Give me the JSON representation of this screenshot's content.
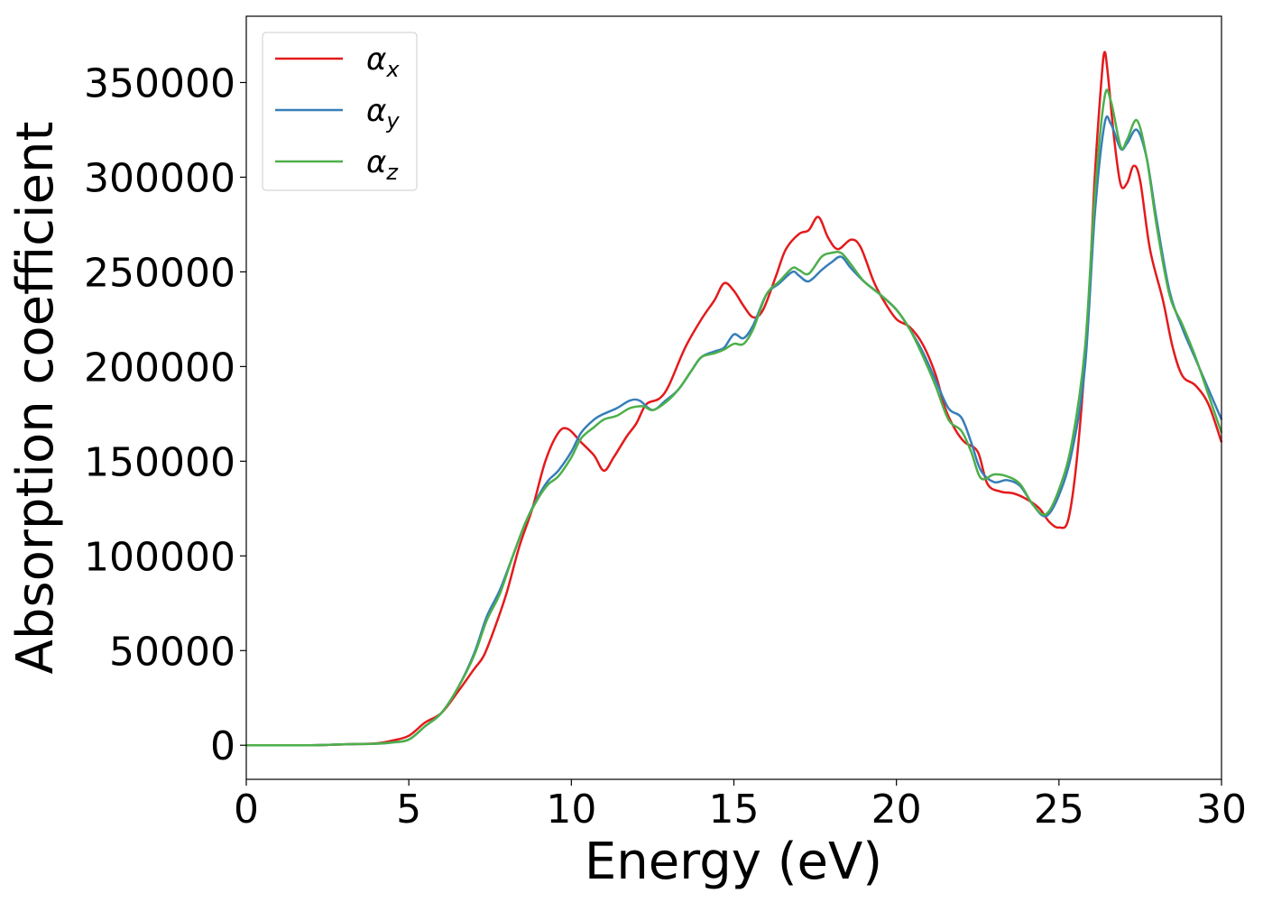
{
  "chart_data": {
    "type": "line",
    "xlabel": "Energy (eV)",
    "ylabel": "Absorption coefficient",
    "xlim": [
      0,
      30
    ],
    "ylim": [
      -18000,
      385000
    ],
    "grid": false,
    "legend_position": "top-left",
    "x_ticks": [
      0,
      5,
      10,
      15,
      20,
      25,
      30
    ],
    "x_tick_labels": [
      "0",
      "5",
      "10",
      "15",
      "20",
      "25",
      "30"
    ],
    "y_ticks": [
      0,
      50000,
      100000,
      150000,
      200000,
      250000,
      300000,
      350000
    ],
    "y_tick_labels": [
      "0",
      "50000",
      "100000",
      "150000",
      "200000",
      "250000",
      "300000",
      "350000"
    ],
    "series": [
      {
        "name": "α",
        "subscript": "x",
        "color": "#e41a1c",
        "points": [
          [
            0,
            0
          ],
          [
            2,
            0
          ],
          [
            3,
            500
          ],
          [
            4,
            1000
          ],
          [
            4.5,
            2500
          ],
          [
            5,
            5000
          ],
          [
            5.5,
            12000
          ],
          [
            6,
            17000
          ],
          [
            6.5,
            28000
          ],
          [
            7,
            40000
          ],
          [
            7.3,
            47000
          ],
          [
            7.6,
            60000
          ],
          [
            8,
            80000
          ],
          [
            8.4,
            105000
          ],
          [
            8.8,
            125000
          ],
          [
            9.2,
            150000
          ],
          [
            9.6,
            165000
          ],
          [
            9.9,
            167000
          ],
          [
            10.3,
            160000
          ],
          [
            10.7,
            153000
          ],
          [
            11,
            145000
          ],
          [
            11.3,
            152000
          ],
          [
            11.7,
            163000
          ],
          [
            12,
            170000
          ],
          [
            12.3,
            180000
          ],
          [
            12.7,
            183000
          ],
          [
            13,
            190000
          ],
          [
            13.5,
            210000
          ],
          [
            14,
            225000
          ],
          [
            14.4,
            235000
          ],
          [
            14.7,
            244000
          ],
          [
            15,
            240000
          ],
          [
            15.3,
            232000
          ],
          [
            15.6,
            226000
          ],
          [
            15.9,
            230000
          ],
          [
            16.3,
            248000
          ],
          [
            16.6,
            262000
          ],
          [
            17,
            270000
          ],
          [
            17.3,
            272000
          ],
          [
            17.6,
            279000
          ],
          [
            17.9,
            268000
          ],
          [
            18.2,
            262000
          ],
          [
            18.6,
            267000
          ],
          [
            18.9,
            263000
          ],
          [
            19.3,
            245000
          ],
          [
            19.6,
            235000
          ],
          [
            20,
            225000
          ],
          [
            20.4,
            221000
          ],
          [
            20.8,
            212000
          ],
          [
            21.2,
            196000
          ],
          [
            21.5,
            178000
          ],
          [
            21.8,
            167000
          ],
          [
            22.1,
            160000
          ],
          [
            22.5,
            155000
          ],
          [
            22.8,
            138000
          ],
          [
            23.2,
            134000
          ],
          [
            23.6,
            133000
          ],
          [
            24,
            130000
          ],
          [
            24.4,
            125000
          ],
          [
            24.7,
            118000
          ],
          [
            25,
            115000
          ],
          [
            25.3,
            120000
          ],
          [
            25.6,
            160000
          ],
          [
            25.9,
            230000
          ],
          [
            26.1,
            300000
          ],
          [
            26.3,
            350000
          ],
          [
            26.4,
            366000
          ],
          [
            26.5,
            355000
          ],
          [
            26.7,
            320000
          ],
          [
            26.9,
            296000
          ],
          [
            27.1,
            297000
          ],
          [
            27.3,
            306000
          ],
          [
            27.5,
            298000
          ],
          [
            27.8,
            262000
          ],
          [
            28.2,
            235000
          ],
          [
            28.5,
            210000
          ],
          [
            28.8,
            195000
          ],
          [
            29.2,
            190000
          ],
          [
            29.6,
            180000
          ],
          [
            30,
            160000
          ]
        ]
      },
      {
        "name": "α",
        "subscript": "y",
        "color": "#377eb8",
        "points": [
          [
            0,
            0
          ],
          [
            2,
            0
          ],
          [
            3,
            500
          ],
          [
            4,
            800
          ],
          [
            4.5,
            1500
          ],
          [
            5,
            3000
          ],
          [
            5.5,
            10000
          ],
          [
            6,
            17000
          ],
          [
            6.5,
            30000
          ],
          [
            7,
            48000
          ],
          [
            7.4,
            68000
          ],
          [
            7.8,
            82000
          ],
          [
            8.2,
            100000
          ],
          [
            8.6,
            118000
          ],
          [
            9,
            132000
          ],
          [
            9.3,
            140000
          ],
          [
            9.6,
            145000
          ],
          [
            10,
            155000
          ],
          [
            10.3,
            165000
          ],
          [
            10.7,
            172000
          ],
          [
            11,
            175000
          ],
          [
            11.4,
            178000
          ],
          [
            11.8,
            182000
          ],
          [
            12.1,
            182000
          ],
          [
            12.5,
            177000
          ],
          [
            12.9,
            182000
          ],
          [
            13.3,
            188000
          ],
          [
            13.7,
            198000
          ],
          [
            14,
            205000
          ],
          [
            14.4,
            208000
          ],
          [
            14.7,
            210000
          ],
          [
            15,
            217000
          ],
          [
            15.3,
            215000
          ],
          [
            15.6,
            222000
          ],
          [
            16,
            238000
          ],
          [
            16.4,
            244000
          ],
          [
            16.8,
            250000
          ],
          [
            17,
            248000
          ],
          [
            17.3,
            245000
          ],
          [
            17.7,
            251000
          ],
          [
            18,
            255000
          ],
          [
            18.3,
            258000
          ],
          [
            18.6,
            252000
          ],
          [
            19,
            245000
          ],
          [
            19.5,
            238000
          ],
          [
            20,
            230000
          ],
          [
            20.4,
            220000
          ],
          [
            20.8,
            208000
          ],
          [
            21.2,
            193000
          ],
          [
            21.6,
            178000
          ],
          [
            22,
            173000
          ],
          [
            22.3,
            160000
          ],
          [
            22.6,
            145000
          ],
          [
            23,
            139000
          ],
          [
            23.4,
            140000
          ],
          [
            23.8,
            137000
          ],
          [
            24.2,
            127000
          ],
          [
            24.6,
            121000
          ],
          [
            25,
            132000
          ],
          [
            25.4,
            155000
          ],
          [
            25.8,
            200000
          ],
          [
            26.1,
            280000
          ],
          [
            26.4,
            328000
          ],
          [
            26.6,
            328000
          ],
          [
            26.9,
            315000
          ],
          [
            27.1,
            318000
          ],
          [
            27.4,
            325000
          ],
          [
            27.7,
            310000
          ],
          [
            28,
            278000
          ],
          [
            28.4,
            240000
          ],
          [
            28.8,
            220000
          ],
          [
            29.2,
            204000
          ],
          [
            29.6,
            188000
          ],
          [
            30,
            172000
          ]
        ]
      },
      {
        "name": "α",
        "subscript": "z",
        "color": "#4daf4a",
        "points": [
          [
            0,
            0
          ],
          [
            2,
            0
          ],
          [
            3,
            500
          ],
          [
            4,
            800
          ],
          [
            4.5,
            1500
          ],
          [
            5,
            3000
          ],
          [
            5.5,
            10000
          ],
          [
            6,
            17000
          ],
          [
            6.5,
            30000
          ],
          [
            7,
            47000
          ],
          [
            7.4,
            66000
          ],
          [
            7.8,
            80000
          ],
          [
            8.2,
            100000
          ],
          [
            8.6,
            118000
          ],
          [
            9,
            131000
          ],
          [
            9.3,
            138000
          ],
          [
            9.6,
            142000
          ],
          [
            10,
            152000
          ],
          [
            10.3,
            162000
          ],
          [
            10.7,
            168000
          ],
          [
            11,
            172000
          ],
          [
            11.4,
            174000
          ],
          [
            11.8,
            178000
          ],
          [
            12.2,
            179000
          ],
          [
            12.5,
            177000
          ],
          [
            12.9,
            181000
          ],
          [
            13.3,
            188000
          ],
          [
            13.7,
            198000
          ],
          [
            14,
            205000
          ],
          [
            14.4,
            207000
          ],
          [
            14.7,
            209000
          ],
          [
            15,
            212000
          ],
          [
            15.3,
            212000
          ],
          [
            15.6,
            220000
          ],
          [
            16,
            238000
          ],
          [
            16.4,
            245000
          ],
          [
            16.8,
            252000
          ],
          [
            17,
            251000
          ],
          [
            17.3,
            249000
          ],
          [
            17.7,
            258000
          ],
          [
            18,
            260000
          ],
          [
            18.3,
            260000
          ],
          [
            18.6,
            254000
          ],
          [
            19,
            245000
          ],
          [
            19.5,
            238000
          ],
          [
            20,
            230000
          ],
          [
            20.4,
            220000
          ],
          [
            20.8,
            206000
          ],
          [
            21.2,
            190000
          ],
          [
            21.6,
            172000
          ],
          [
            22,
            166000
          ],
          [
            22.3,
            155000
          ],
          [
            22.6,
            141000
          ],
          [
            23,
            143000
          ],
          [
            23.4,
            142000
          ],
          [
            23.8,
            138000
          ],
          [
            24.2,
            127000
          ],
          [
            24.6,
            122000
          ],
          [
            25,
            135000
          ],
          [
            25.4,
            160000
          ],
          [
            25.8,
            210000
          ],
          [
            26.1,
            290000
          ],
          [
            26.4,
            342000
          ],
          [
            26.6,
            340000
          ],
          [
            26.9,
            316000
          ],
          [
            27.1,
            320000
          ],
          [
            27.4,
            330000
          ],
          [
            27.7,
            310000
          ],
          [
            28,
            275000
          ],
          [
            28.4,
            238000
          ],
          [
            28.8,
            222000
          ],
          [
            29.2,
            205000
          ],
          [
            29.6,
            185000
          ],
          [
            30,
            165000
          ]
        ]
      }
    ]
  }
}
